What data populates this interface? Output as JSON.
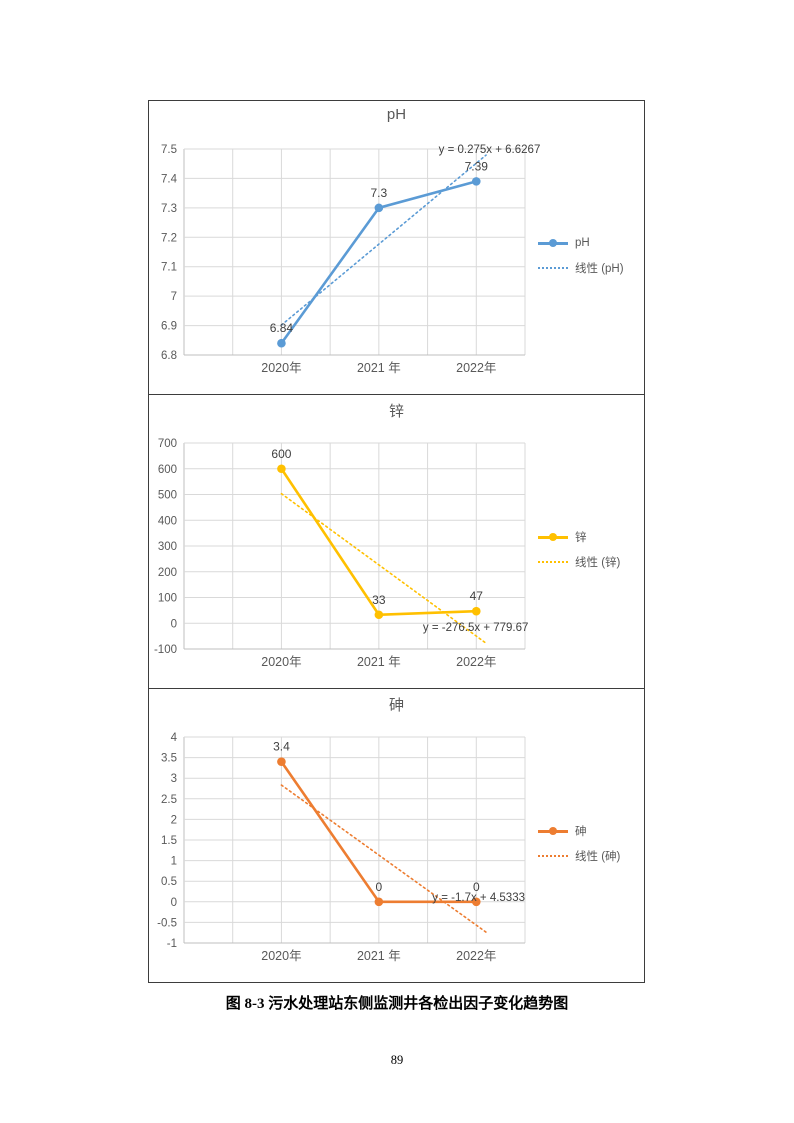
{
  "caption": "图 8-3  污水处理站东侧监测井各检出因子变化趋势图",
  "page_number": "89",
  "theme": {
    "accent_blue": "#5B9BD5",
    "accent_yellow": "#FFC000",
    "accent_orange": "#ED7D31",
    "chart_text": "#595959",
    "data_label_text": "#404040",
    "gridline": "#D9D9D9",
    "axis_line": "#BFBFBF",
    "box_border": "#3d3d3d"
  },
  "chart_data": [
    {
      "type": "line",
      "title": "pH",
      "categories": [
        "2020年",
        "2021 年",
        "2022年"
      ],
      "series": [
        {
          "name": "pH",
          "values": [
            6.84,
            7.3,
            7.39
          ],
          "color": "#5B9BD5"
        }
      ],
      "data_labels": [
        "6.84",
        "7.3",
        "7.39"
      ],
      "trendline": {
        "name": "线性 (pH)",
        "equation": "y = 0.275x + 6.6267",
        "slope": 0.275,
        "intercept": 6.6267,
        "style": "dotted"
      },
      "ylim": [
        6.8,
        7.5
      ],
      "yticks": [
        "7.5",
        "7.4",
        "7.3",
        "7.2",
        "7.1",
        "7",
        "6.9",
        "6.8"
      ],
      "grid": true,
      "legend_position": "right-middle",
      "equation_pos": {
        "xf": 1.045,
        "y": 7.487,
        "anchor": "end"
      }
    },
    {
      "type": "line",
      "title": "锌",
      "categories": [
        "2020年",
        "2021 年",
        "2022年"
      ],
      "series": [
        {
          "name": "锌",
          "values": [
            600,
            33,
            47
          ],
          "color": "#FFC000"
        }
      ],
      "data_labels": [
        "600",
        "33",
        "47"
      ],
      "trendline": {
        "name": "线性 (锌)",
        "equation": "y = -276.5x + 779.67",
        "slope": -276.5,
        "intercept": 779.67,
        "style": "dotted"
      },
      "ylim": [
        -100,
        700
      ],
      "yticks": [
        "700",
        "600",
        "500",
        "400",
        "300",
        "200",
        "100",
        "0",
        "-100"
      ],
      "grid": true,
      "legend_position": "right-middle",
      "equation_pos": {
        "xf": 1.01,
        "y": -30,
        "anchor": "end"
      }
    },
    {
      "type": "line",
      "title": "砷",
      "categories": [
        "2020年",
        "2021 年",
        "2022年"
      ],
      "series": [
        {
          "name": "砷",
          "values": [
            3.4,
            0,
            0
          ],
          "color": "#ED7D31"
        }
      ],
      "data_labels": [
        "3.4",
        "0",
        "0"
      ],
      "trendline": {
        "name": "线性 (砷)",
        "equation": "y = -1.7x + 4.5333",
        "slope": -1.7,
        "intercept": 4.5333,
        "style": "dotted"
      },
      "ylim": [
        -1,
        4
      ],
      "yticks": [
        "4",
        "3.5",
        "3",
        "2.5",
        "2",
        "1.5",
        "1",
        "0.5",
        "0",
        "-0.5",
        "-1"
      ],
      "grid": true,
      "legend_position": "right-middle",
      "equation_pos": {
        "xf": 1.0,
        "y": 0.02,
        "anchor": "end"
      }
    }
  ]
}
